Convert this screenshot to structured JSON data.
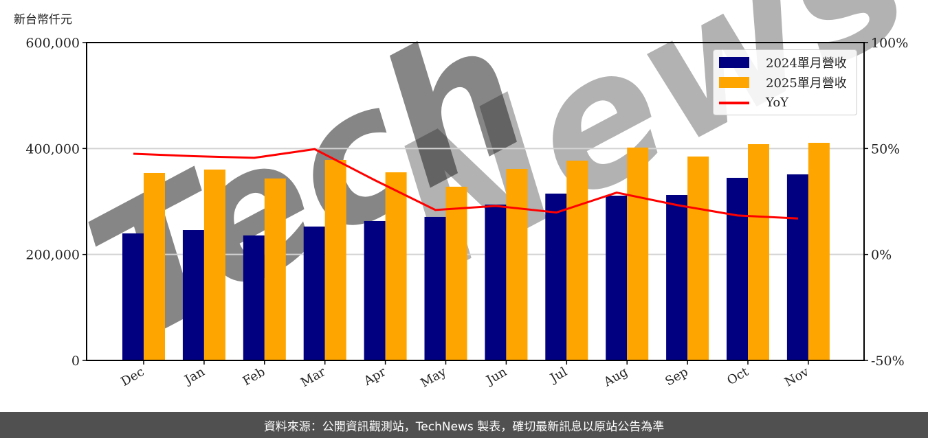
{
  "unit_label": "新台幣仟元",
  "footer": {
    "text": "資料來源：公開資訊觀測站，TechNews 製表，確切最新訊息以原站公告為準"
  },
  "watermark": "TechNews",
  "legend": {
    "items": [
      {
        "label": "2024單月營收",
        "color": "#000080",
        "kind": "bar"
      },
      {
        "label": "2025單月營收",
        "color": "#FFA500",
        "kind": "bar"
      },
      {
        "label": "YoY",
        "color": "#FF0000",
        "kind": "line"
      }
    ]
  },
  "chart_data": {
    "type": "bar",
    "title": "",
    "xlabel": "",
    "ylabel": "新台幣仟元",
    "y2label": "YoY",
    "categories": [
      "Dec",
      "Jan",
      "Feb",
      "Mar",
      "Apr",
      "May",
      "Jun",
      "Jul",
      "Aug",
      "Sep",
      "Oct",
      "Nov"
    ],
    "series": [
      {
        "name": "2024單月營收",
        "type": "bar",
        "axis": "left",
        "color": "#000080",
        "values": [
          239800,
          246200,
          235900,
          252700,
          263100,
          270900,
          294200,
          314900,
          311000,
          312300,
          344700,
          351200
        ]
      },
      {
        "name": "2025單月營收",
        "type": "bar",
        "axis": "left",
        "color": "#FFA500",
        "values": [
          353800,
          360300,
          343400,
          378400,
          355100,
          327900,
          361600,
          377100,
          401800,
          384900,
          408200,
          410800
        ]
      },
      {
        "name": "YoY",
        "type": "line",
        "axis": "right",
        "color": "#FF0000",
        "values": [
          47.5,
          46.4,
          45.6,
          49.7,
          35.0,
          21.0,
          22.9,
          19.8,
          29.2,
          23.3,
          18.4,
          17.0
        ]
      }
    ],
    "ylim": [
      0,
      600000
    ],
    "y2lim": [
      -50,
      100
    ],
    "yticks": [
      0,
      200000,
      400000,
      600000
    ],
    "ytick_labels": [
      "0",
      "200,000",
      "400,000",
      "600,000"
    ],
    "y2ticks": [
      -50,
      0,
      50,
      100
    ],
    "y2tick_labels": [
      "-50%",
      "0%",
      "50%",
      "100%"
    ],
    "grid": {
      "y": true,
      "x": false
    },
    "legend_position": "upper right"
  }
}
